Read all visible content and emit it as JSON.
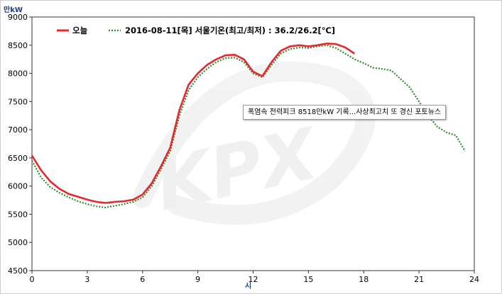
{
  "chart_data": {
    "type": "line",
    "y_unit_label": "만kW",
    "x_unit_label": "시",
    "watermark": "KPX",
    "xlim": [
      0,
      24
    ],
    "ylim": [
      4500,
      9000
    ],
    "x_ticks": [
      0,
      3,
      6,
      9,
      12,
      15,
      18,
      21,
      24
    ],
    "y_ticks": [
      4500,
      5000,
      5500,
      6000,
      6500,
      7000,
      7500,
      8000,
      8500,
      9000
    ],
    "grid": false,
    "legend_placement": "top-left",
    "legend_info": "2016-08-11[목]  서울기온(최고/최저) : 36.2/26.2[℃]",
    "tooltip": "폭염속 전력피크 8518만kW 기록...사상최고치 또 경신 포토뉴스",
    "series": [
      {
        "name": "오늘",
        "color": "#e8272d",
        "style": "solid",
        "x": [
          0,
          0.5,
          1,
          1.5,
          2,
          2.5,
          3,
          3.5,
          4,
          4.5,
          5,
          5.5,
          6,
          6.5,
          7,
          7.5,
          8,
          8.5,
          9,
          9.5,
          10,
          10.5,
          11,
          11.5,
          12,
          12.5,
          13,
          13.5,
          14,
          14.5,
          15,
          15.5,
          16,
          16.5,
          17,
          17.5
        ],
        "y": [
          6540,
          6280,
          6080,
          5950,
          5860,
          5810,
          5760,
          5720,
          5700,
          5720,
          5730,
          5760,
          5850,
          6050,
          6350,
          6680,
          7350,
          7800,
          8000,
          8150,
          8250,
          8320,
          8330,
          8250,
          8030,
          7950,
          8200,
          8400,
          8480,
          8500,
          8480,
          8500,
          8530,
          8520,
          8460,
          8350
        ]
      },
      {
        "name": "2016-08-11[목]",
        "color": "#2e8b2e",
        "style": "dotted",
        "x": [
          0,
          0.5,
          1,
          1.5,
          2,
          2.5,
          3,
          3.5,
          4,
          4.5,
          5,
          5.5,
          6,
          6.5,
          7,
          7.5,
          8,
          8.5,
          9,
          9.5,
          10,
          10.5,
          11,
          11.5,
          12,
          12.5,
          13,
          13.5,
          14,
          14.5,
          15,
          15.5,
          16,
          16.5,
          17,
          17.5,
          18,
          18.5,
          19,
          19.5,
          20,
          20.5,
          21,
          21.5,
          22,
          22.5,
          23,
          23.5
        ],
        "y": [
          6450,
          6150,
          5980,
          5880,
          5800,
          5730,
          5680,
          5640,
          5620,
          5650,
          5680,
          5720,
          5800,
          6000,
          6300,
          6620,
          7250,
          7700,
          7930,
          8080,
          8200,
          8270,
          8280,
          8200,
          8000,
          7930,
          8150,
          8350,
          8430,
          8460,
          8450,
          8480,
          8500,
          8450,
          8350,
          8250,
          8180,
          8100,
          8080,
          8050,
          7900,
          7750,
          7500,
          7250,
          7050,
          6950,
          6900,
          6620
        ]
      }
    ]
  }
}
